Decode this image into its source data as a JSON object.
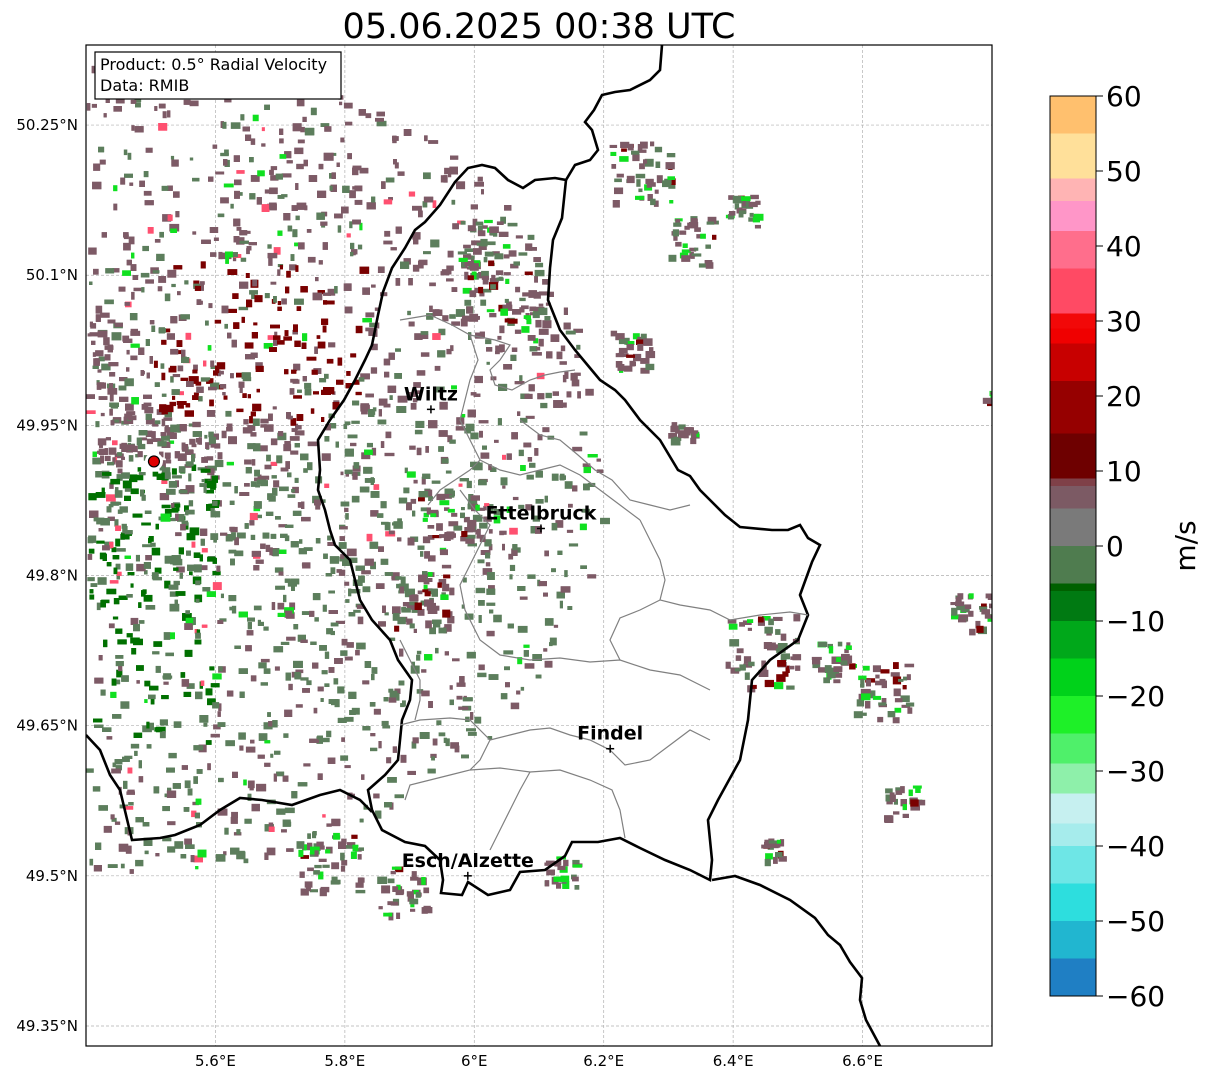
{
  "title": "05.06.2025 00:38 UTC",
  "info_box": {
    "product": "Product: 0.5° Radial Velocity",
    "data": "Data: RMIB"
  },
  "map": {
    "lon_range": [
      5.4,
      6.8
    ],
    "lat_range": [
      49.33,
      50.33
    ],
    "lon_ticks": [
      {
        "value": 5.6,
        "label": "5.6°E"
      },
      {
        "value": 5.8,
        "label": "5.8°E"
      },
      {
        "value": 6.0,
        "label": "6°E"
      },
      {
        "value": 6.2,
        "label": "6.2°E"
      },
      {
        "value": 6.4,
        "label": "6.4°E"
      },
      {
        "value": 6.6,
        "label": "6.6°E"
      }
    ],
    "lat_ticks": [
      {
        "value": 50.25,
        "label": "50.25°N"
      },
      {
        "value": 50.1,
        "label": "50.1°N"
      },
      {
        "value": 49.95,
        "label": "49.95°N"
      },
      {
        "value": 49.8,
        "label": "49.8°N"
      },
      {
        "value": 49.65,
        "label": "49.65°N"
      },
      {
        "value": 49.5,
        "label": "49.5°N"
      },
      {
        "value": 49.35,
        "label": "49.35°N"
      }
    ],
    "grid": true,
    "radar_site": {
      "lon": 5.505,
      "lat": 49.914,
      "color": "#e00000"
    },
    "cities": [
      {
        "name": "Wiltz",
        "lon": 5.933,
        "lat": 49.966
      },
      {
        "name": "Ettelbruck",
        "lon": 6.103,
        "lat": 49.847
      },
      {
        "name": "Findel",
        "lon": 6.21,
        "lat": 49.627
      },
      {
        "name": "Esch/Alzette",
        "lon": 5.99,
        "lat": 49.5
      }
    ]
  },
  "colorbar": {
    "label": "m/s",
    "min": -60,
    "max": 60,
    "ticks": [
      {
        "value": 60,
        "label": "60"
      },
      {
        "value": 50,
        "label": "50"
      },
      {
        "value": 40,
        "label": "40"
      },
      {
        "value": 30,
        "label": "30"
      },
      {
        "value": 20,
        "label": "20"
      },
      {
        "value": 10,
        "label": "10"
      },
      {
        "value": 0,
        "label": "0"
      },
      {
        "value": -10,
        "label": "−10"
      },
      {
        "value": -20,
        "label": "−20"
      },
      {
        "value": -30,
        "label": "−30"
      },
      {
        "value": -40,
        "label": "−40"
      },
      {
        "value": -50,
        "label": "−50"
      },
      {
        "value": -60,
        "label": "−60"
      }
    ],
    "stops": [
      {
        "value": -60,
        "color": "#1f7fc4"
      },
      {
        "value": -55,
        "color": "#21b6d0"
      },
      {
        "value": -50,
        "color": "#2ddede"
      },
      {
        "value": -45,
        "color": "#6ee6e6"
      },
      {
        "value": -40,
        "color": "#a6ecec"
      },
      {
        "value": -37,
        "color": "#c6f0f0"
      },
      {
        "value": -33,
        "color": "#8ef0aa"
      },
      {
        "value": -29,
        "color": "#4ff06a"
      },
      {
        "value": -25,
        "color": "#1ef028"
      },
      {
        "value": -20,
        "color": "#00d21a"
      },
      {
        "value": -15,
        "color": "#00a81a"
      },
      {
        "value": -10,
        "color": "#007a12"
      },
      {
        "value": -6,
        "color": "#006000"
      },
      {
        "value": -5,
        "color": "#4f7c4f"
      },
      {
        "value": 0,
        "color": "#7a7a7a"
      },
      {
        "value": 5,
        "color": "#7c5a64"
      },
      {
        "value": 8,
        "color": "#7f4048"
      },
      {
        "value": 9,
        "color": "#6e0000"
      },
      {
        "value": 15,
        "color": "#960000"
      },
      {
        "value": 22,
        "color": "#c80000"
      },
      {
        "value": 27,
        "color": "#f00000"
      },
      {
        "value": 29,
        "color": "#f20808"
      },
      {
        "value": 31,
        "color": "#ff4a64"
      },
      {
        "value": 37,
        "color": "#ff6e8c"
      },
      {
        "value": 42,
        "color": "#ff96c8"
      },
      {
        "value": 46,
        "color": "#ffb4b4"
      },
      {
        "value": 49,
        "color": "#ffe09a"
      },
      {
        "value": 55,
        "color": "#ffc06e"
      },
      {
        "value": 60,
        "color": "#ff9a50"
      }
    ]
  },
  "colors": {
    "border_country": "#000000",
    "border_canton": "#808080",
    "grid": "#b0b0b0",
    "echo_negative": "#5c7e5c",
    "echo_positive": "#7d5a66",
    "echo_strong_negative": "#007000",
    "echo_strong_positive": "#7a0000",
    "echo_bright_green": "#10e020",
    "echo_pink": "#ff5070"
  }
}
